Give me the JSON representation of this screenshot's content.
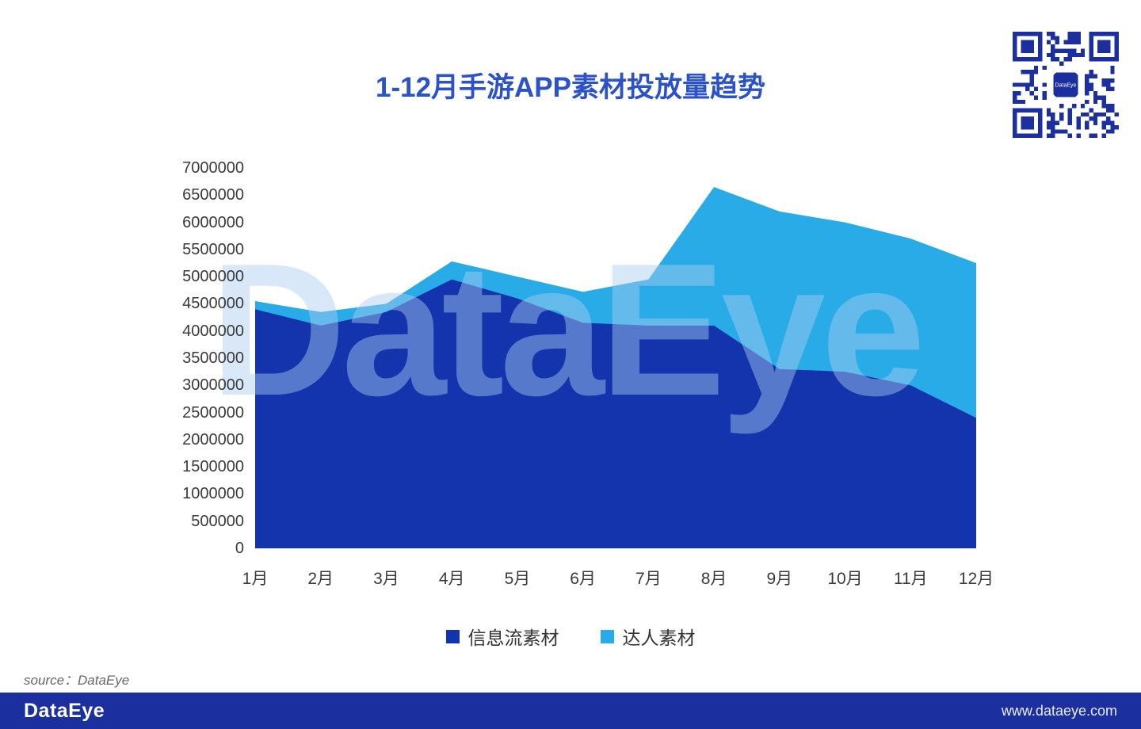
{
  "watermark": "DataEye",
  "source_note": "source：DataEye",
  "footer": {
    "logo": "DataEye",
    "url": "www.dataeye.com"
  },
  "qr": {
    "center_label": "DataEye"
  },
  "colors": {
    "series_dark": "#1434ae",
    "series_light": "#29abe8",
    "title": "#2b52c6",
    "footer_bg": "#1b2f9e",
    "qr": "#1b2f9e",
    "watermark": "#a9cdf0",
    "axis_text": "#3a3a3a"
  },
  "chart_data": {
    "type": "area",
    "stacked": true,
    "title": "1-12月手游APP素材投放量趋势",
    "categories": [
      "1月",
      "2月",
      "3月",
      "4月",
      "5月",
      "6月",
      "7月",
      "8月",
      "9月",
      "10月",
      "11月",
      "12月"
    ],
    "series": [
      {
        "name": "信息流素材",
        "color": "#1434ae",
        "values": [
          4400000,
          4100000,
          4350000,
          4950000,
          4600000,
          4150000,
          4100000,
          4100000,
          3300000,
          3250000,
          3000000,
          2400000
        ]
      },
      {
        "name": "达人素材",
        "color": "#29abe8",
        "values": [
          150000,
          250000,
          150000,
          330000,
          400000,
          570000,
          850000,
          2550000,
          2900000,
          2750000,
          2700000,
          2850000
        ]
      }
    ],
    "ylim": [
      0,
      7000000
    ],
    "ytick_step": 500000,
    "yticks": [
      "7000000",
      "6500000",
      "6000000",
      "5500000",
      "5000000",
      "4500000",
      "4000000",
      "3500000",
      "3000000",
      "2500000",
      "2000000",
      "1500000",
      "1000000",
      "500000",
      "0"
    ],
    "grid": false,
    "legend_position": "bottom"
  }
}
